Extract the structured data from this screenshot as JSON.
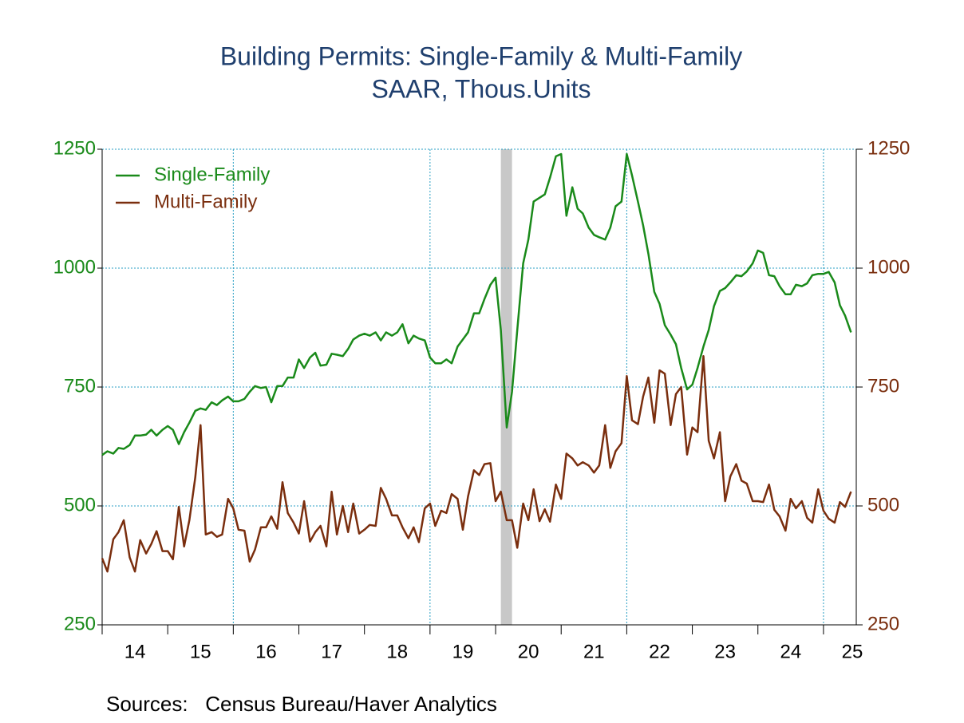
{
  "chart_data": {
    "type": "line",
    "title": "Building Permits: Single-Family & Multi-Family",
    "subtitle": "SAAR, Thous.Units",
    "source": "Sources:   Census Bureau/Haver Analytics",
    "xlim": [
      2014,
      2025.5
    ],
    "xticks": [
      {
        "value": 2014,
        "label": "14"
      },
      {
        "value": 2015,
        "label": "15"
      },
      {
        "value": 2016,
        "label": "16"
      },
      {
        "value": 2017,
        "label": "17"
      },
      {
        "value": 2018,
        "label": "18"
      },
      {
        "value": 2019,
        "label": "19"
      },
      {
        "value": 2020,
        "label": "20"
      },
      {
        "value": 2021,
        "label": "21"
      },
      {
        "value": 2022,
        "label": "22"
      },
      {
        "value": 2023,
        "label": "23"
      },
      {
        "value": 2024,
        "label": "24"
      },
      {
        "value": 2025,
        "label": "25"
      }
    ],
    "xgrid": [
      2016,
      2019,
      2022,
      2025
    ],
    "shading": [
      2020.08,
      2020.25
    ],
    "ylim": [
      250,
      1250
    ],
    "yticks": [
      250,
      500,
      750,
      1000,
      1250
    ],
    "y2lim": [
      250,
      1250
    ],
    "y2ticks": [
      250,
      500,
      750,
      1000,
      1250
    ],
    "grid": true,
    "legend": "upper left",
    "x": [
      2014.0,
      2014.08,
      2014.17,
      2014.25,
      2014.33,
      2014.42,
      2014.5,
      2014.58,
      2014.67,
      2014.75,
      2014.83,
      2014.92,
      2015.0,
      2015.08,
      2015.17,
      2015.25,
      2015.33,
      2015.42,
      2015.5,
      2015.58,
      2015.67,
      2015.75,
      2015.83,
      2015.92,
      2016.0,
      2016.08,
      2016.17,
      2016.25,
      2016.33,
      2016.42,
      2016.5,
      2016.58,
      2016.67,
      2016.75,
      2016.83,
      2016.92,
      2017.0,
      2017.08,
      2017.17,
      2017.25,
      2017.33,
      2017.42,
      2017.5,
      2017.58,
      2017.67,
      2017.75,
      2017.83,
      2017.92,
      2018.0,
      2018.08,
      2018.17,
      2018.25,
      2018.33,
      2018.42,
      2018.5,
      2018.58,
      2018.67,
      2018.75,
      2018.83,
      2018.92,
      2019.0,
      2019.08,
      2019.17,
      2019.25,
      2019.33,
      2019.42,
      2019.5,
      2019.58,
      2019.67,
      2019.75,
      2019.83,
      2019.92,
      2020.0,
      2020.08,
      2020.17,
      2020.25,
      2020.33,
      2020.42,
      2020.5,
      2020.58,
      2020.67,
      2020.75,
      2020.83,
      2020.92,
      2021.0,
      2021.08,
      2021.17,
      2021.25,
      2021.33,
      2021.42,
      2021.5,
      2021.58,
      2021.67,
      2021.75,
      2021.83,
      2021.92,
      2022.0,
      2022.08,
      2022.17,
      2022.25,
      2022.33,
      2022.42,
      2022.5,
      2022.58,
      2022.67,
      2022.75,
      2022.83,
      2022.92,
      2023.0,
      2023.08,
      2023.17,
      2023.25,
      2023.33,
      2023.42,
      2023.5,
      2023.58,
      2023.67,
      2023.75,
      2023.83,
      2023.92,
      2024.0,
      2024.08,
      2024.17,
      2024.25,
      2024.33,
      2024.42,
      2024.5,
      2024.58,
      2024.67,
      2024.75,
      2024.83,
      2024.92,
      2025.0,
      2025.08,
      2025.17,
      2025.25,
      2025.33,
      2025.42
    ],
    "series": [
      {
        "name": "Single-Family",
        "color": "#1a8a1a",
        "axis": "y",
        "values": [
          607,
          615,
          610,
          622,
          620,
          628,
          648,
          648,
          650,
          660,
          648,
          660,
          668,
          660,
          630,
          655,
          675,
          700,
          705,
          702,
          718,
          712,
          722,
          730,
          720,
          720,
          725,
          740,
          752,
          748,
          750,
          718,
          752,
          752,
          770,
          770,
          808,
          790,
          812,
          822,
          795,
          797,
          820,
          818,
          815,
          830,
          850,
          858,
          862,
          858,
          865,
          848,
          865,
          858,
          865,
          882,
          842,
          858,
          852,
          848,
          812,
          800,
          800,
          808,
          800,
          835,
          850,
          865,
          905,
          905,
          935,
          965,
          980,
          870,
          665,
          740,
          870,
          1010,
          1060,
          1140,
          1148,
          1155,
          1190,
          1235,
          1240,
          1110,
          1170,
          1125,
          1115,
          1085,
          1070,
          1065,
          1060,
          1085,
          1130,
          1140,
          1240,
          1195,
          1140,
          1090,
          1030,
          950,
          925,
          880,
          860,
          840,
          790,
          745,
          755,
          790,
          835,
          870,
          920,
          952,
          958,
          970,
          985,
          983,
          993,
          1010,
          1037,
          1032,
          985,
          983,
          962,
          945,
          945,
          965,
          962,
          968,
          985,
          988,
          988,
          992,
          970,
          922,
          900,
          865
        ]
      },
      {
        "name": "Multi-Family",
        "color": "#7a2e0e",
        "axis": "y2",
        "values": [
          390,
          362,
          430,
          445,
          470,
          392,
          362,
          428,
          400,
          420,
          447,
          405,
          405,
          388,
          498,
          415,
          470,
          560,
          670,
          440,
          445,
          435,
          440,
          515,
          495,
          450,
          448,
          383,
          408,
          455,
          455,
          478,
          452,
          550,
          485,
          465,
          442,
          510,
          425,
          445,
          458,
          415,
          530,
          440,
          500,
          445,
          505,
          442,
          450,
          460,
          458,
          538,
          515,
          480,
          480,
          455,
          432,
          455,
          424,
          495,
          505,
          458,
          490,
          485,
          525,
          515,
          450,
          520,
          575,
          565,
          588,
          590,
          510,
          530,
          470,
          470,
          412,
          505,
          470,
          535,
          468,
          493,
          467,
          545,
          515,
          610,
          600,
          585,
          592,
          585,
          570,
          585,
          670,
          580,
          615,
          632,
          773,
          680,
          672,
          730,
          770,
          675,
          785,
          778,
          670,
          735,
          750,
          608,
          665,
          655,
          815,
          637,
          600,
          655,
          510,
          562,
          588,
          553,
          547,
          510,
          510,
          508,
          545,
          492,
          478,
          448,
          515,
          495,
          510,
          475,
          465,
          535,
          490,
          473,
          465,
          508,
          498,
          530
        ]
      }
    ]
  }
}
